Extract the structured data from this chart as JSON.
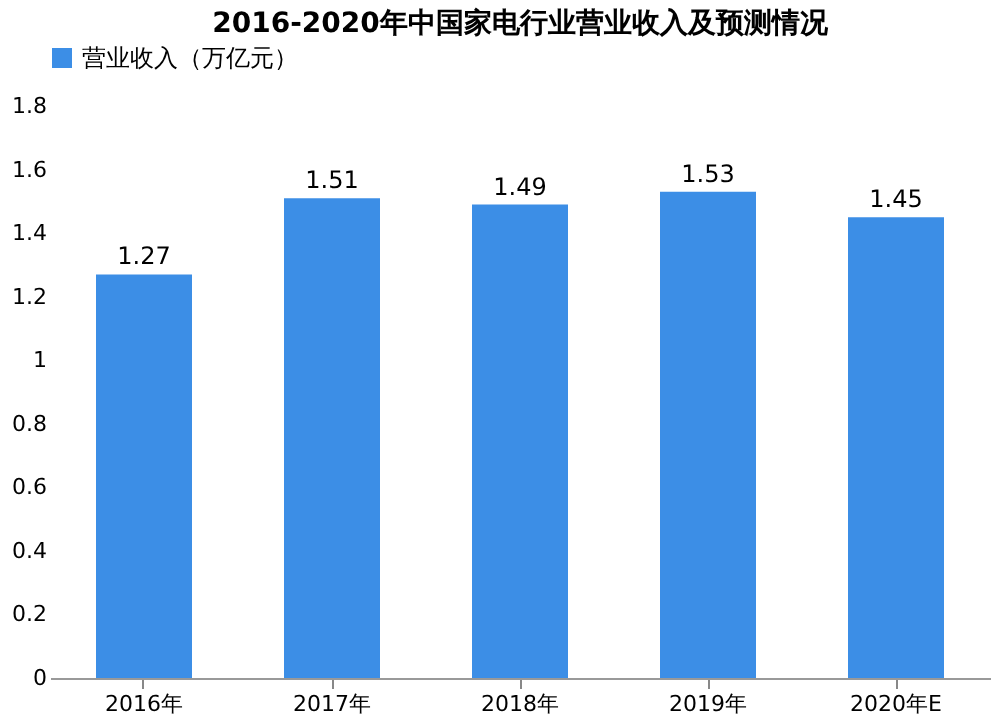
{
  "chart_data": {
    "type": "bar",
    "title": "2016-2020年中国家电行业营业收入及预测情况",
    "categories": [
      "2016年",
      "2017年",
      "2018年",
      "2019年",
      "2020年E"
    ],
    "series": [
      {
        "name": "营业收入（万亿元）",
        "color": "#3c8ee6",
        "values": [
          1.27,
          1.51,
          1.49,
          1.53,
          1.45
        ]
      }
    ],
    "ylim": [
      0,
      1.8
    ],
    "yticks": [
      0,
      0.2,
      0.4,
      0.6,
      0.8,
      1,
      1.2,
      1.4,
      1.6,
      1.8
    ],
    "data_labels": true,
    "legend": "top",
    "grid": false
  }
}
